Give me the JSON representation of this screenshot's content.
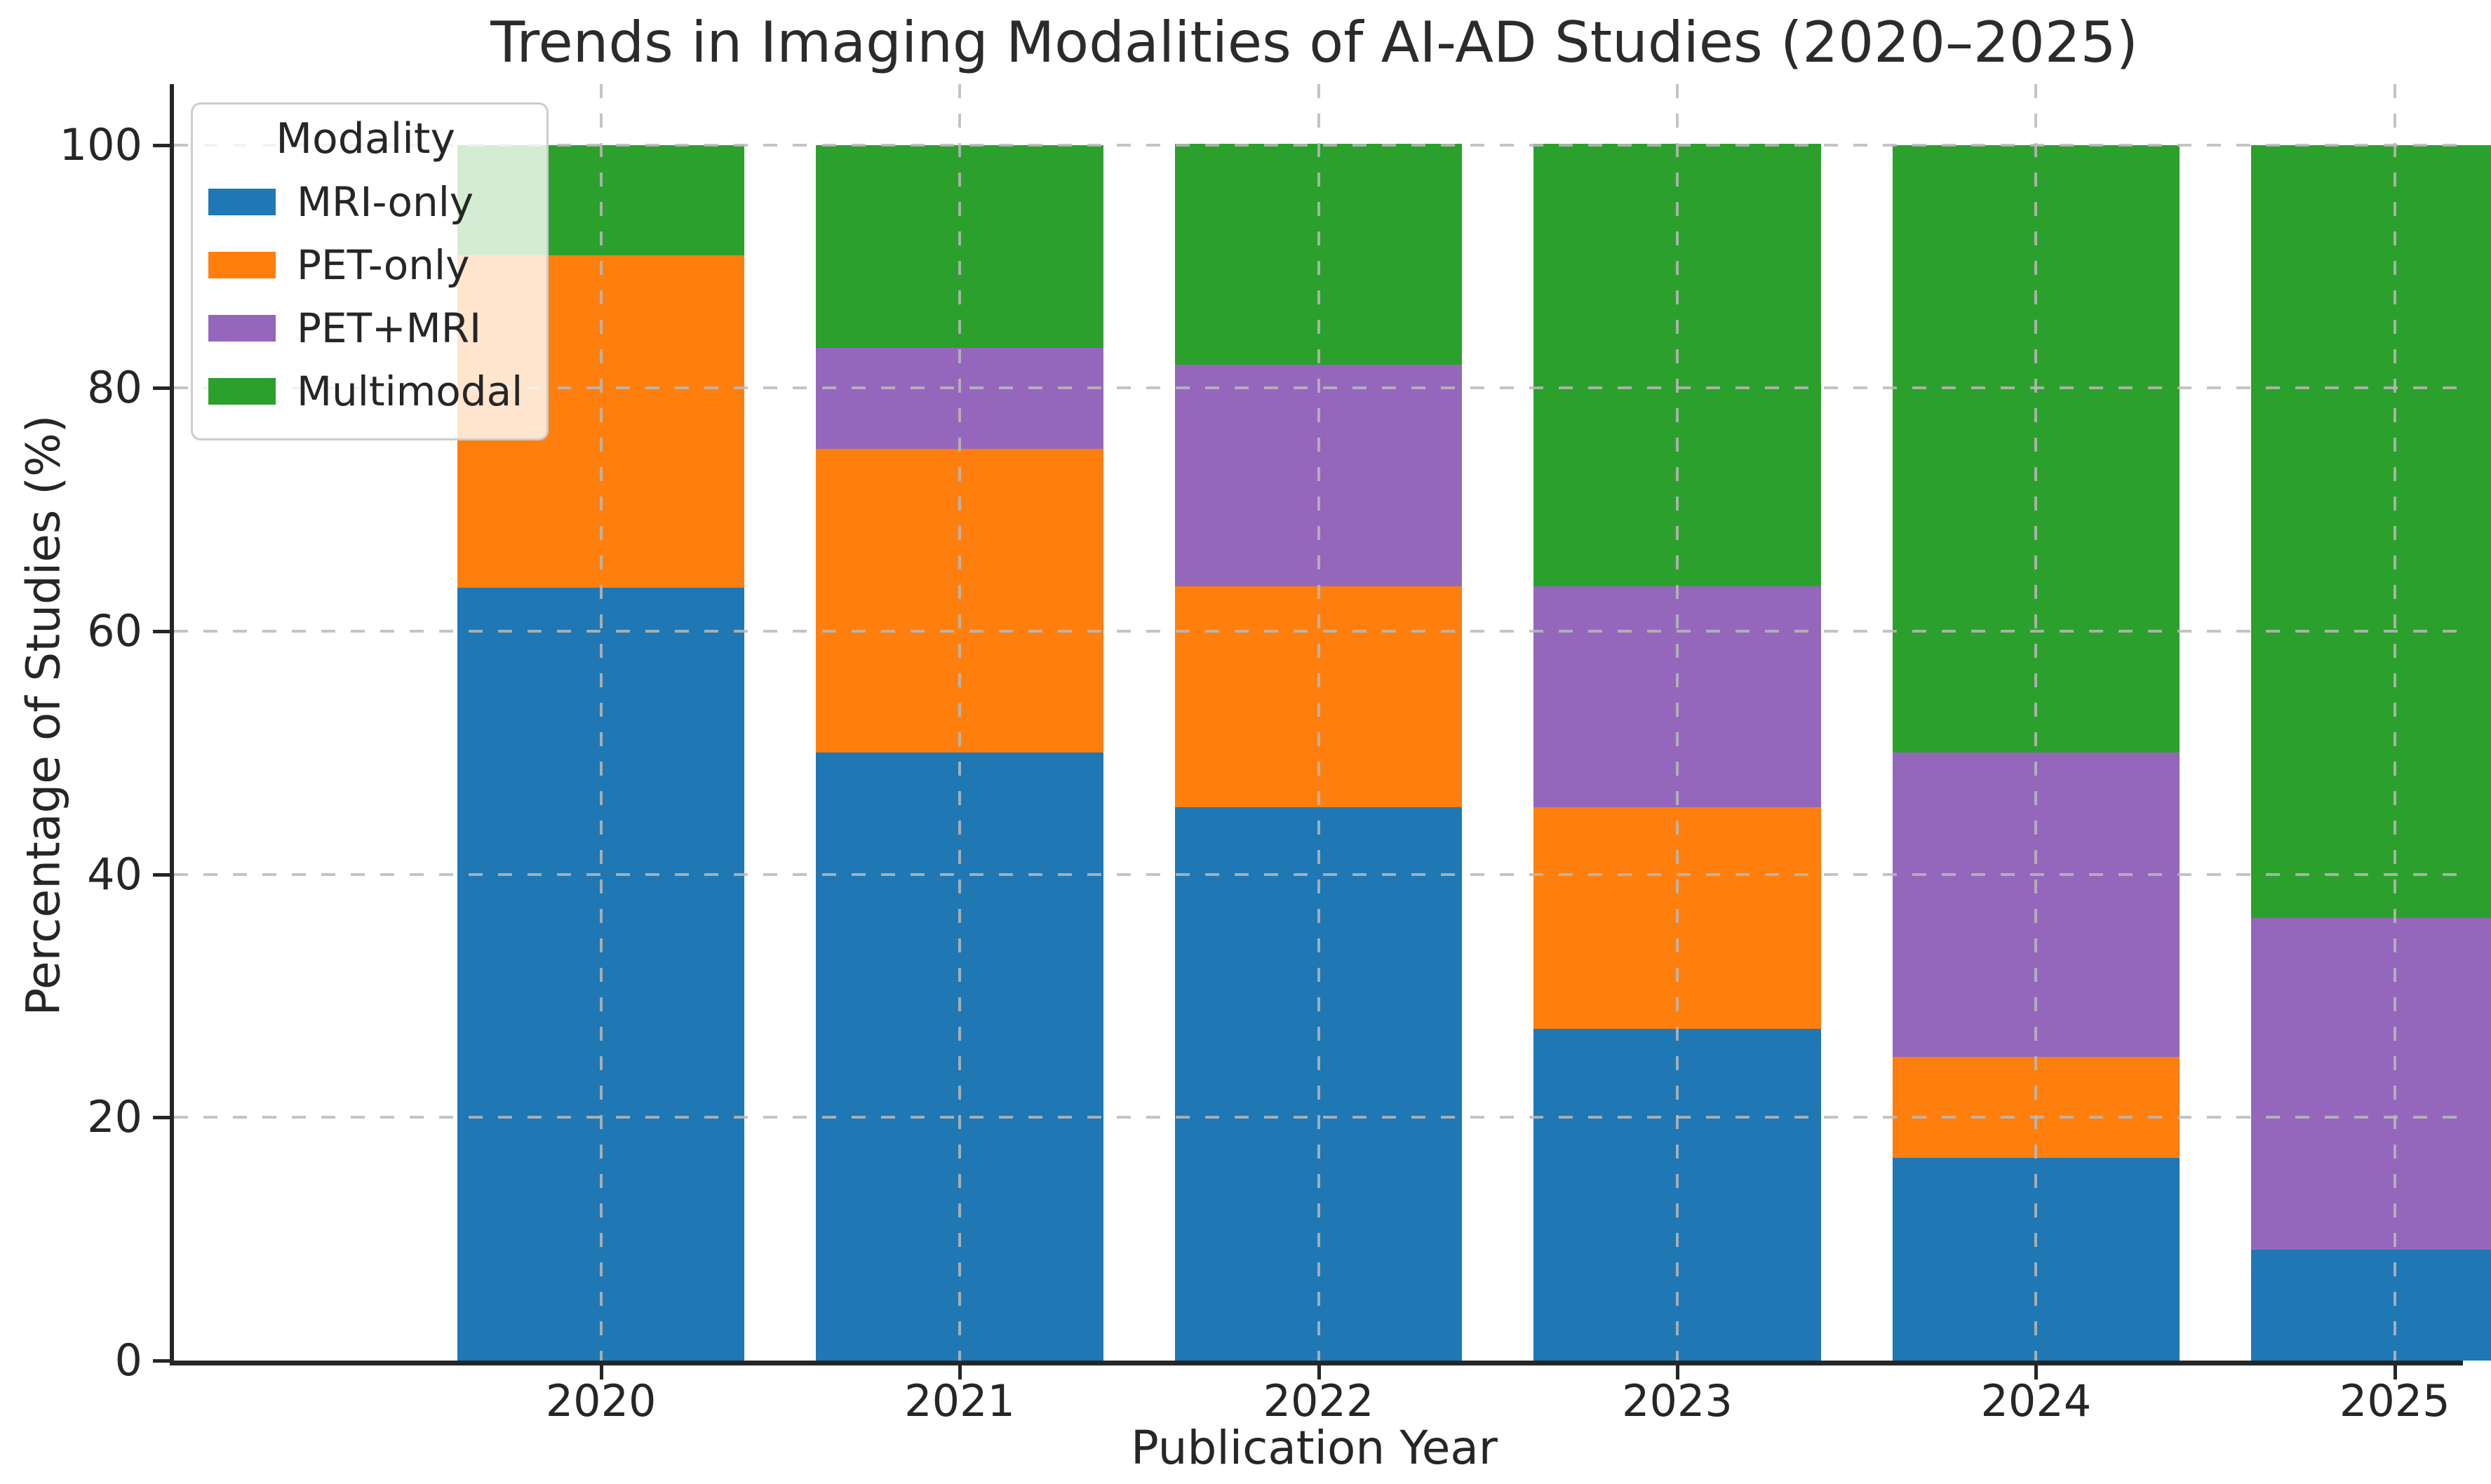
{
  "chart_data": {
    "type": "bar",
    "stacked": true,
    "title": "Trends in Imaging Modalities of AI-AD Studies (2020–2025)",
    "xlabel": "Publication Year",
    "ylabel": "Percentage of Studies (%)",
    "categories": [
      "2020",
      "2021",
      "2022",
      "2023",
      "2024",
      "2025"
    ],
    "series": [
      {
        "name": "MRI-only",
        "color": "#1f77b4",
        "values": [
          63.6,
          50.0,
          45.5,
          27.3,
          16.7,
          9.1
        ]
      },
      {
        "name": "PET-only",
        "color": "#ff7f0e",
        "values": [
          27.3,
          25.0,
          18.2,
          18.2,
          8.3,
          0.0
        ]
      },
      {
        "name": "PET+MRI",
        "color": "#9467bd",
        "values": [
          0.0,
          8.3,
          18.2,
          18.2,
          25.0,
          27.3
        ]
      },
      {
        "name": "Multimodal",
        "color": "#2ca02c",
        "values": [
          9.1,
          16.7,
          18.2,
          36.4,
          50.0,
          63.6
        ]
      }
    ],
    "ylim": [
      0,
      105
    ],
    "yticks": [
      0,
      20,
      40,
      60,
      80,
      100
    ],
    "grid": "dashed gridlines on both axes, drawn over bars",
    "legend": {
      "title": "Modality",
      "entries": [
        "MRI-only",
        "PET-only",
        "PET+MRI",
        "Multimodal"
      ],
      "position": "upper left"
    },
    "colors": {
      "spine": "#262626",
      "grid": "#b9b9b9",
      "text": "#262626",
      "background": "#ffffff"
    }
  }
}
